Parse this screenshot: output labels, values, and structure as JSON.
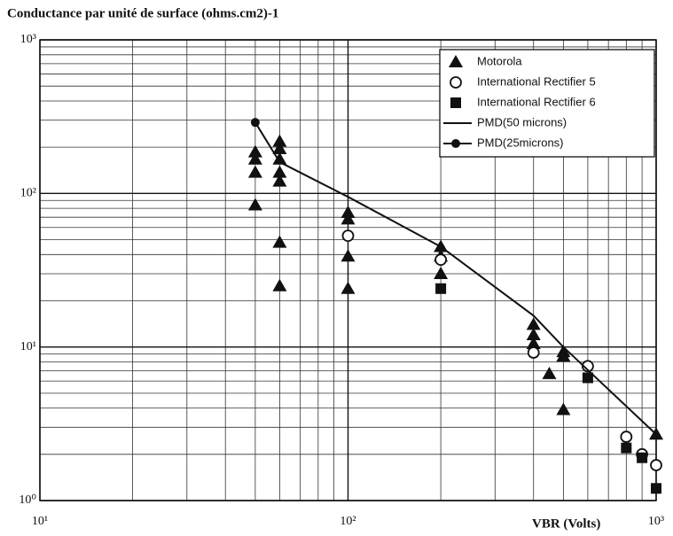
{
  "chart_data": {
    "type": "scatter",
    "title": "Conductance par unité de surface (ohms.cm2)-1",
    "x_label": "VBR (Volts)",
    "log_x": true,
    "log_y": true,
    "grid": true,
    "minor_grid": true,
    "legend": "upper right",
    "xlim": [
      10,
      1000
    ],
    "ylim": [
      1,
      1000
    ],
    "xticks": [
      {
        "value": 10,
        "label": "10¹"
      },
      {
        "value": 100,
        "label": "10²"
      },
      {
        "value": 1000,
        "label": "10³"
      }
    ],
    "yticks": [
      {
        "value": 1,
        "label": "10⁰"
      },
      {
        "value": 10,
        "label": "10¹"
      },
      {
        "value": 100,
        "label": "10²"
      },
      {
        "value": 1000,
        "label": "10³"
      }
    ],
    "series": [
      {
        "name": "Motorola",
        "marker": "triangle",
        "color": "#111",
        "x": [
          50,
          50,
          50,
          50,
          60,
          60,
          60,
          60,
          60,
          60,
          60,
          100,
          100,
          100,
          100,
          200,
          200,
          200,
          400,
          400,
          400,
          450,
          500,
          500,
          500,
          1000
        ],
        "values": [
          186,
          167,
          137,
          84,
          218,
          195,
          167,
          137,
          120,
          48,
          25,
          75,
          68,
          39,
          24,
          45,
          39,
          30,
          14,
          12,
          10.5,
          6.7,
          9.3,
          8.7,
          3.9,
          2.7
        ]
      },
      {
        "name": "International Rectifier 5",
        "marker": "circle-open",
        "color": "#111",
        "x": [
          100,
          200,
          400,
          600,
          800,
          900,
          1000
        ],
        "values": [
          53,
          37,
          9.2,
          7.5,
          2.6,
          2.0,
          1.7
        ]
      },
      {
        "name": "International Rectifier 6",
        "marker": "square",
        "color": "#111",
        "x": [
          200,
          600,
          800,
          900,
          1000
        ],
        "values": [
          24,
          6.3,
          2.2,
          1.9,
          1.2
        ]
      },
      {
        "name": "PMD(50 microns)",
        "marker": "line",
        "color": "#111",
        "x": [
          60,
          100,
          200,
          400,
          500,
          1000
        ],
        "values": [
          160,
          95,
          45,
          16,
          10,
          2.7
        ]
      },
      {
        "name": "PMD(25microns)",
        "marker": "line-dot",
        "color": "#111",
        "x": [
          50,
          60
        ],
        "values": [
          290,
          160
        ]
      }
    ]
  }
}
